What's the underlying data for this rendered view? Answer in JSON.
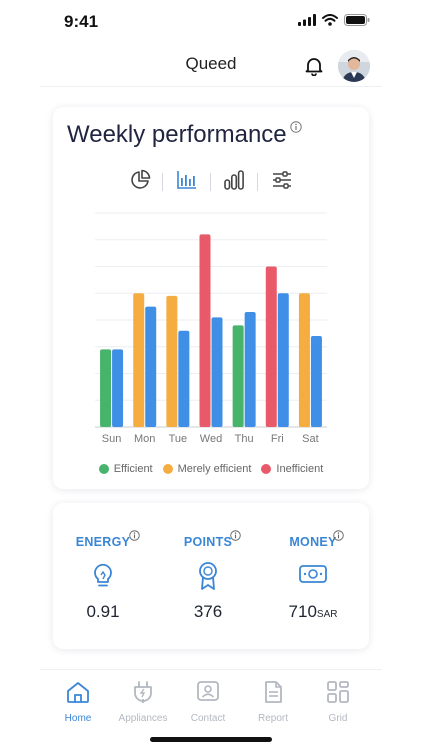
{
  "status_bar": {
    "time": "9:41"
  },
  "header": {
    "title": "Queed",
    "notification_icon": "bell-icon",
    "avatar_icon": "user-avatar"
  },
  "performance": {
    "title": "Weekly performance",
    "tools": [
      "pie-chart-icon",
      "bar-chart-icon",
      "column-chart-icon",
      "filter-sliders-icon"
    ],
    "active_tool": "bar-chart-icon"
  },
  "chart_data": {
    "type": "bar",
    "categories": [
      "Sun",
      "Mon",
      "Tue",
      "Wed",
      "Thu",
      "Fri",
      "Sat"
    ],
    "ylim": [
      0,
      8
    ],
    "grid": true,
    "legend_position": "bottom",
    "series": [
      {
        "name": "Efficient",
        "color": "#47b36b",
        "values": [
          2.9,
          null,
          null,
          null,
          3.8,
          null,
          null
        ]
      },
      {
        "name": "Merely efficient",
        "color": "#f5ad42",
        "values": [
          null,
          5.0,
          4.9,
          null,
          null,
          null,
          5.0
        ]
      },
      {
        "name": "Inefficient",
        "color": "#e85a6a",
        "values": [
          null,
          null,
          null,
          7.2,
          null,
          6.0,
          null
        ]
      },
      {
        "name": "",
        "color": "#3f8fe6",
        "values": [
          2.9,
          4.5,
          3.6,
          4.1,
          4.3,
          5.0,
          3.4
        ]
      }
    ]
  },
  "stats": [
    {
      "label": "ENERGY",
      "icon": "lightbulb-icon",
      "value": "0.91",
      "unit": ""
    },
    {
      "label": "POINTS",
      "icon": "award-ribbon-icon",
      "value": "376",
      "unit": ""
    },
    {
      "label": "MONEY",
      "icon": "money-icon",
      "value": "710",
      "unit": "SAR"
    }
  ],
  "tabs": [
    {
      "label": "Home",
      "icon": "home-icon",
      "active": true
    },
    {
      "label": "Appliances",
      "icon": "plug-icon",
      "active": false
    },
    {
      "label": "Contact",
      "icon": "contact-icon",
      "active": false
    },
    {
      "label": "Report",
      "icon": "report-icon",
      "active": false
    },
    {
      "label": "Grid",
      "icon": "grid-icon",
      "active": false
    }
  ],
  "colors": {
    "accent": "#3a86d6",
    "inactive": "#b3b8c0"
  }
}
